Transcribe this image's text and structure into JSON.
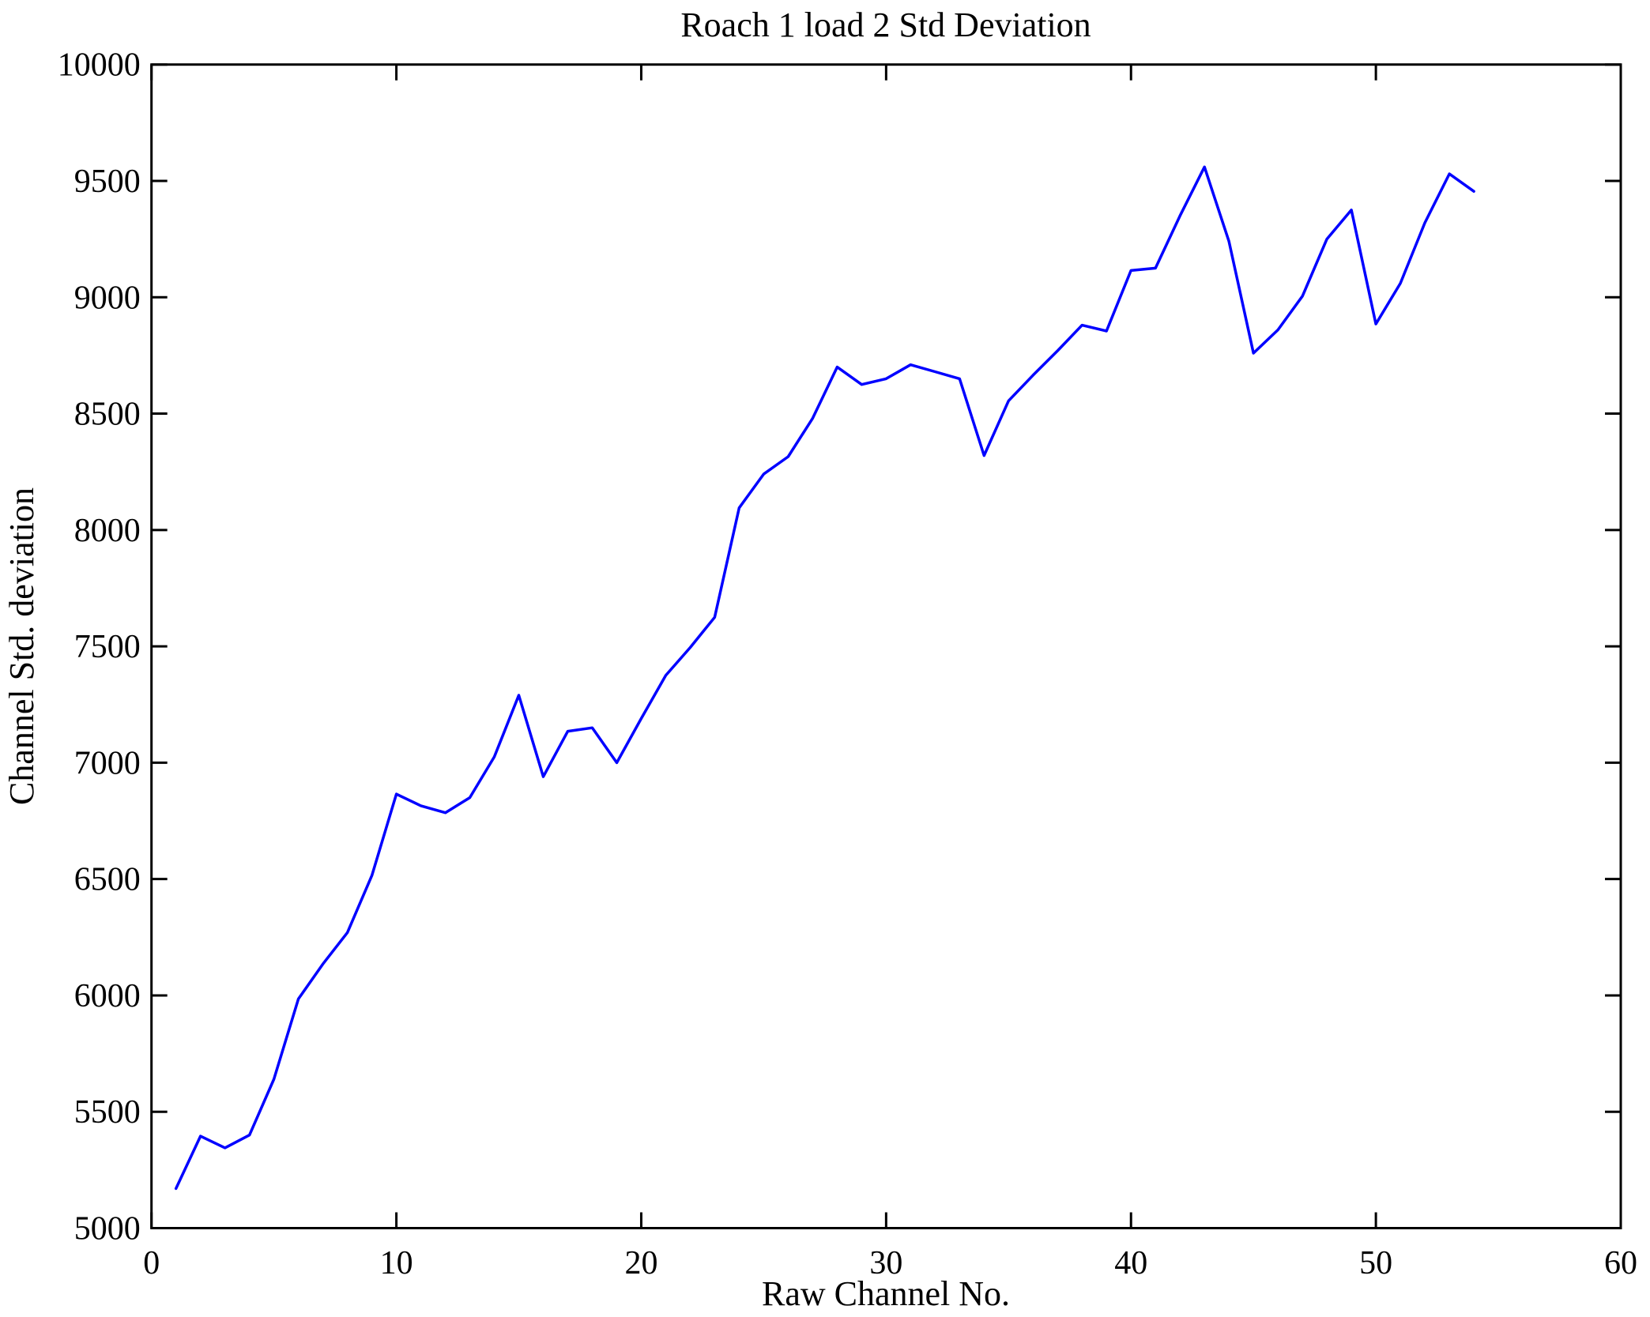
{
  "figure": {
    "background_color": "#ffffff",
    "text_color": "#000000"
  },
  "chart_data": {
    "type": "line",
    "title": "Roach 1 load 2 Std Deviation",
    "xlabel": "Raw Channel No.",
    "ylabel": "Channel Std. deviation",
    "xlim": [
      0,
      60
    ],
    "ylim": [
      5000,
      10000
    ],
    "x_ticks": [
      0,
      10,
      20,
      30,
      40,
      50,
      60
    ],
    "y_ticks": [
      5000,
      5500,
      6000,
      6500,
      7000,
      7500,
      8000,
      8500,
      9000,
      9500,
      10000
    ],
    "grid": false,
    "legend_position": "none",
    "line_color": "#0000ff",
    "axis_color": "#000000",
    "series_name": "Channel Std. deviation vs Raw Channel No.",
    "x": [
      1,
      2,
      3,
      4,
      5,
      6,
      7,
      8,
      9,
      10,
      11,
      12,
      13,
      14,
      15,
      16,
      17,
      18,
      19,
      20,
      21,
      22,
      23,
      24,
      25,
      26,
      27,
      28,
      29,
      30,
      31,
      32,
      33,
      34,
      35,
      36,
      37,
      38,
      39,
      40,
      41,
      42,
      43,
      44,
      45,
      46,
      47,
      48,
      49,
      50,
      51,
      52,
      53,
      54
    ],
    "y": [
      5170,
      5395,
      5345,
      5400,
      5640,
      5985,
      6135,
      6270,
      6515,
      6865,
      6815,
      6785,
      6850,
      7025,
      7290,
      6940,
      7135,
      7150,
      7000,
      7190,
      7375,
      7495,
      7625,
      8095,
      8240,
      8315,
      8480,
      8700,
      8625,
      8650,
      8710,
      8680,
      8650,
      8320,
      8555,
      8665,
      8770,
      8880,
      8855,
      9115,
      9125,
      9350,
      9560,
      9240,
      8760,
      8860,
      9005,
      9250,
      9375,
      8885,
      9060,
      9320,
      9530,
      9455
    ]
  }
}
